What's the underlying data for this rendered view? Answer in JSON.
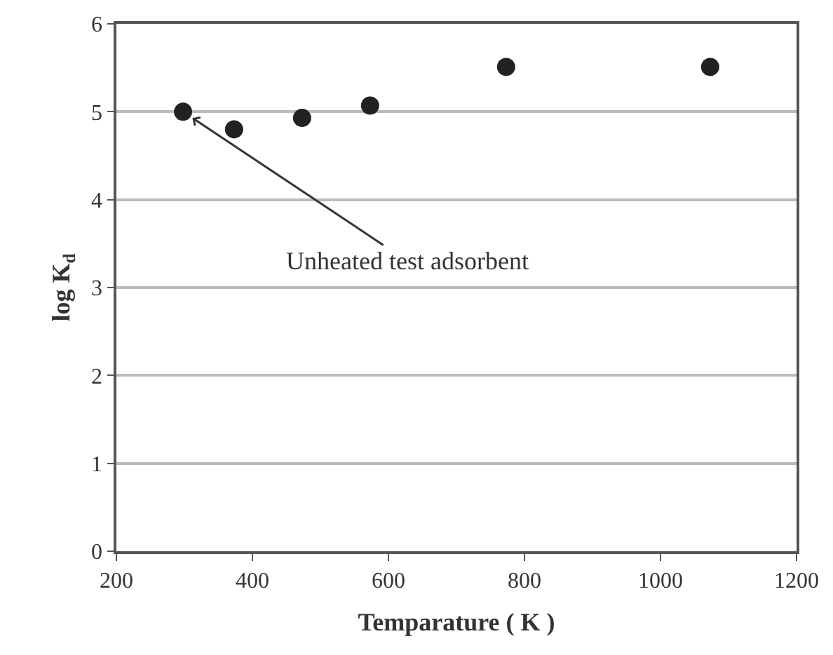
{
  "chart_data": {
    "type": "scatter",
    "xlabel": "Temparature ( K )",
    "ylabel": "log K$_{d}$",
    "x": [
      298,
      373,
      473,
      573,
      773,
      1073
    ],
    "series": [
      {
        "color": "#222222",
        "values": [
          5.0,
          4.8,
          4.93,
          5.07,
          5.51,
          5.51
        ]
      }
    ],
    "xlim": [
      200,
      1200
    ],
    "xticks": [
      200,
      400,
      600,
      800,
      1000,
      1200
    ],
    "ylim": [
      0,
      6
    ],
    "yticks": [
      0,
      1,
      2,
      3,
      4,
      5,
      6
    ],
    "grid": "y",
    "marker": "circle",
    "annotations": [
      {
        "text": "Unheated test adsorbent",
        "x": 298,
        "y": 5.0
      }
    ]
  }
}
